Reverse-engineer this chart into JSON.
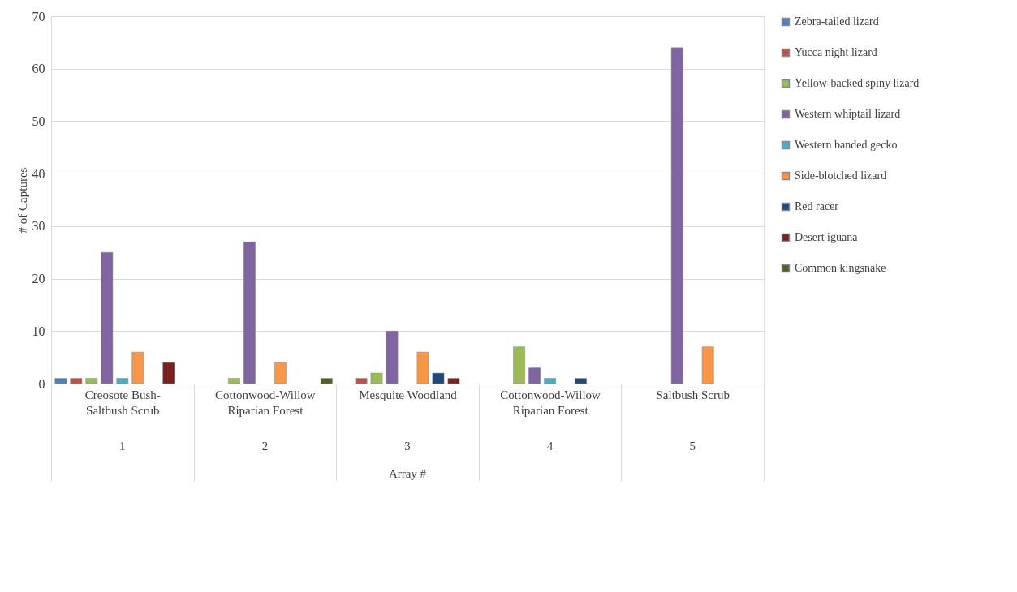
{
  "chart_data": {
    "type": "bar",
    "ylabel": "# of Captures",
    "categories": [
      "Creosote Bush-Saltbush Scrub",
      "Cottonwood-Willow Riparian Forest",
      "Mesquite Woodland",
      "Cottonwood-Willow Riparian Forest",
      "Saltbush Scrub"
    ],
    "annotations": [
      "1",
      "2",
      "3",
      "4",
      "5",
      "Array #"
    ],
    "ylim": [
      0,
      70
    ],
    "yticks": [
      0,
      10,
      20,
      30,
      40,
      50,
      60,
      70
    ],
    "grid": "y",
    "legend": "right",
    "series": [
      {
        "name": "Zebra-tailed lizard",
        "color": "#4f81bd",
        "values": [
          1,
          null,
          null,
          null,
          null
        ]
      },
      {
        "name": "Yucca night lizard",
        "color": "#c0504d",
        "values": [
          1,
          null,
          1,
          null,
          null
        ]
      },
      {
        "name": "Yellow-backed spiny lizard",
        "color": "#9bbb59",
        "values": [
          1,
          1,
          2,
          7,
          null
        ]
      },
      {
        "name": "Western whiptail lizard",
        "color": "#8064a2",
        "values": [
          25,
          27,
          10,
          3,
          64
        ]
      },
      {
        "name": "Western banded gecko",
        "color": "#4bacc6",
        "values": [
          1,
          null,
          null,
          1,
          null
        ]
      },
      {
        "name": "Side-blotched lizard",
        "color": "#f79646",
        "values": [
          6,
          4,
          6,
          null,
          7
        ]
      },
      {
        "name": "Red racer",
        "color": "#1f497d",
        "values": [
          null,
          null,
          2,
          1,
          null
        ]
      },
      {
        "name": "Desert iguana",
        "color": "#7b1f1f",
        "values": [
          4,
          null,
          1,
          null,
          null
        ]
      },
      {
        "name": "Common kingsnake",
        "color": "#4f6228",
        "values": [
          null,
          1,
          null,
          null,
          null
        ]
      }
    ]
  }
}
